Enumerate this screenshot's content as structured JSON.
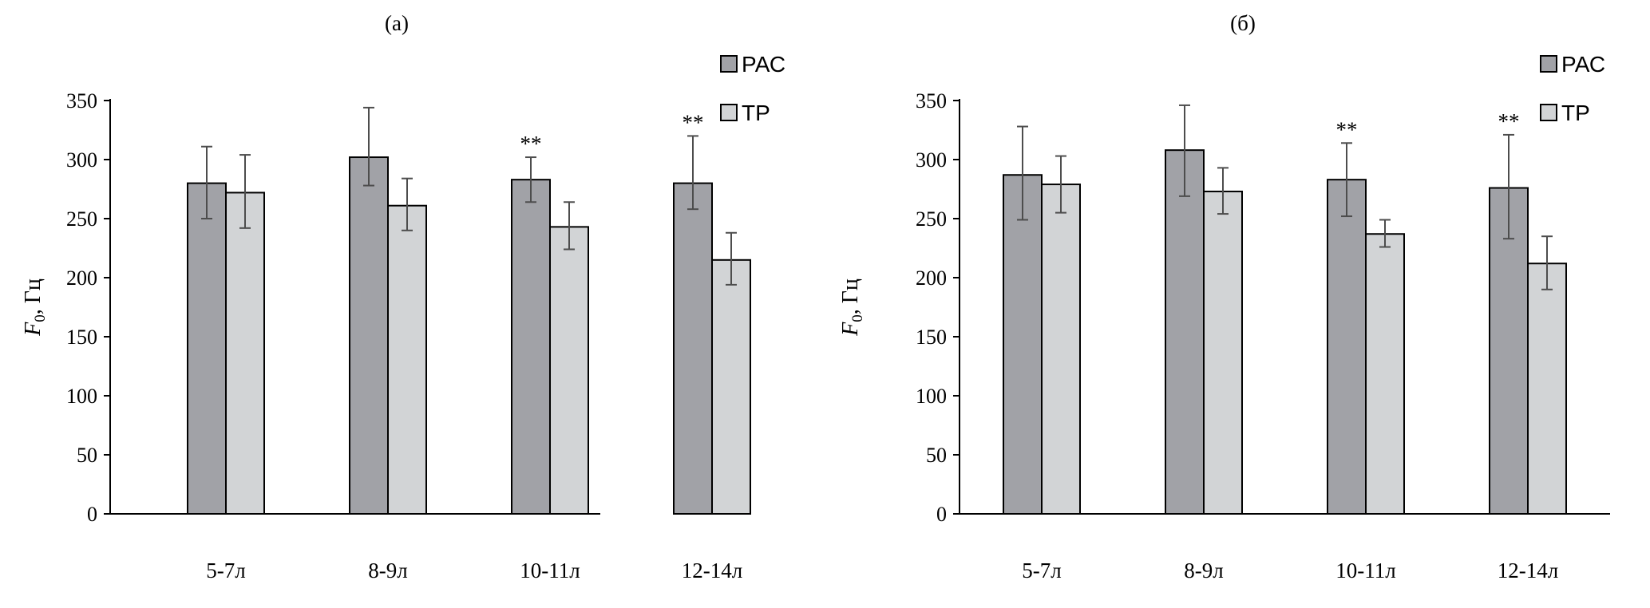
{
  "colors": {
    "pac": "#a1a2a7",
    "tr": "#d2d4d6",
    "bar_stroke": "#000000",
    "error_bar": "#4d4d4d",
    "axis": "#000000"
  },
  "chart_data": [
    {
      "type": "bar",
      "title": "(а)",
      "categories": [
        "5-7л",
        "8-9л",
        "10-11л",
        "12-14л"
      ],
      "xlabel": "",
      "ylabel": {
        "main": "F",
        "sub": "0",
        "suffix": ", Гц"
      },
      "ylim": [
        0,
        350
      ],
      "yticks": [
        0,
        50,
        100,
        150,
        200,
        250,
        300,
        350
      ],
      "grid": false,
      "legend_position": "top-right",
      "series": [
        {
          "name": "РАС",
          "color_key": "pac",
          "values": [
            280,
            302,
            283,
            280
          ],
          "err_low": [
            250,
            278,
            264,
            258
          ],
          "err_high": [
            311,
            344,
            302,
            320
          ]
        },
        {
          "name": "ТР",
          "color_key": "tr",
          "values": [
            272,
            261,
            243,
            215
          ],
          "err_low": [
            242,
            240,
            224,
            194
          ],
          "err_high": [
            304,
            284,
            264,
            238
          ]
        }
      ],
      "annotations": [
        {
          "category_index": 2,
          "text": "**"
        },
        {
          "category_index": 3,
          "text": "**"
        }
      ]
    },
    {
      "type": "bar",
      "title": "(б)",
      "categories": [
        "5-7л",
        "8-9л",
        "10-11л",
        "12-14л"
      ],
      "xlabel": "",
      "ylabel": {
        "main": "F",
        "sub": "0",
        "suffix": ", Гц"
      },
      "ylim": [
        0,
        350
      ],
      "yticks": [
        0,
        50,
        100,
        150,
        200,
        250,
        300,
        350
      ],
      "grid": false,
      "legend_position": "top-right",
      "series": [
        {
          "name": "РАС",
          "color_key": "pac",
          "values": [
            287,
            308,
            283,
            276
          ],
          "err_low": [
            249,
            269,
            252,
            233
          ],
          "err_high": [
            328,
            346,
            314,
            321
          ]
        },
        {
          "name": "ТР",
          "color_key": "tr",
          "values": [
            279,
            273,
            237,
            212
          ],
          "err_low": [
            255,
            254,
            226,
            190
          ],
          "err_high": [
            303,
            293,
            249,
            235
          ]
        }
      ],
      "annotations": [
        {
          "category_index": 2,
          "text": "**"
        },
        {
          "category_index": 3,
          "text": "**"
        }
      ]
    }
  ]
}
